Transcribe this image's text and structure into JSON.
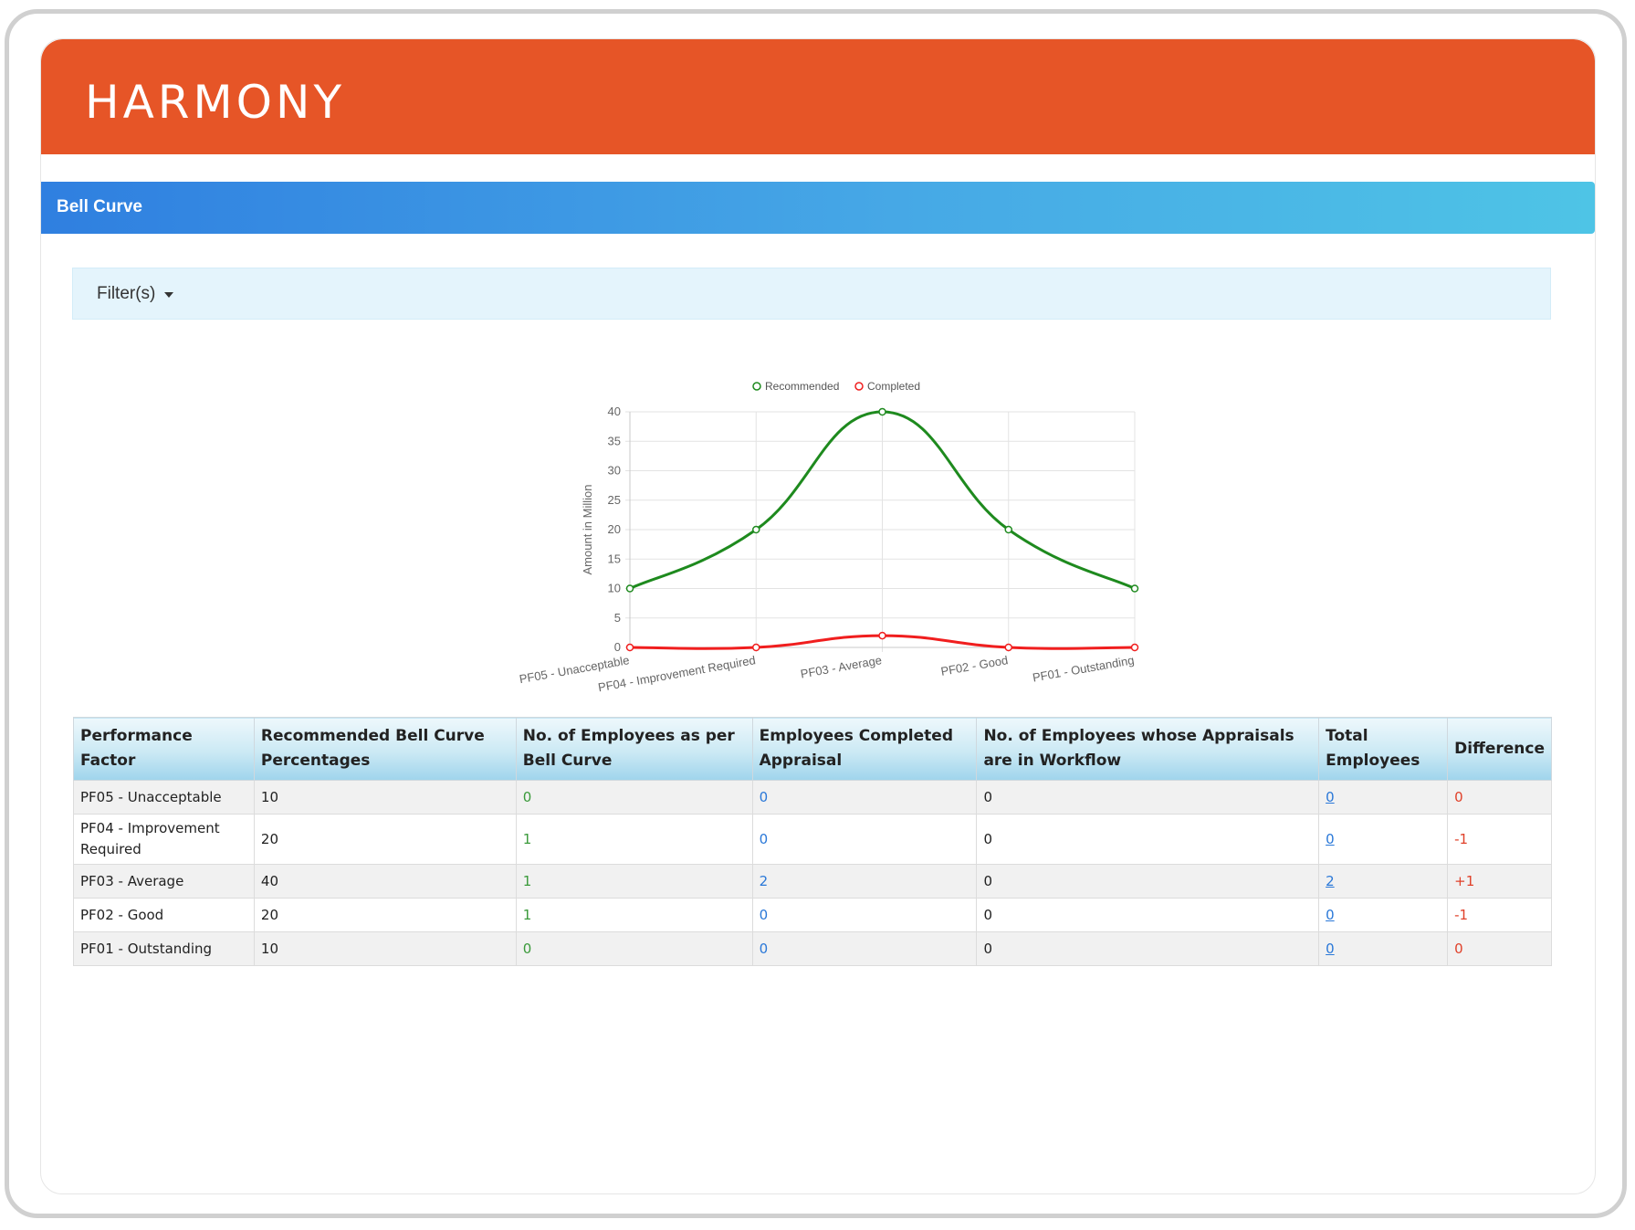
{
  "brand": {
    "logo": "HARMONY",
    "color": "#e65527"
  },
  "section": {
    "title": "Bell Curve"
  },
  "filter": {
    "label": "Filter(s)"
  },
  "chart_data": {
    "type": "line",
    "categories": [
      "PF05 - Unacceptable",
      "PF04 - Improvement Required",
      "PF03 - Average",
      "PF02 - Good",
      "PF01 - Outstanding"
    ],
    "series": [
      {
        "name": "Recommended",
        "values": [
          10,
          20,
          40,
          20,
          10
        ],
        "color": "#1e8a1e"
      },
      {
        "name": "Completed",
        "values": [
          0,
          0,
          2,
          0,
          0
        ],
        "color": "#f01e1e"
      }
    ],
    "ylabel": "Amount in Million",
    "xlabel": "",
    "ylim": [
      0,
      40
    ],
    "yticks": [
      0,
      5,
      10,
      15,
      20,
      25,
      30,
      35,
      40
    ],
    "grid": true,
    "legend": "top",
    "smooth": true
  },
  "table": {
    "headers": [
      "Performance Factor",
      "Recommended Bell Curve Percentages",
      "No. of Employees as per Bell Curve",
      "Employees Completed Appraisal",
      "No. of Employees whose Appraisals are in Workflow",
      "Total Employees",
      "Difference"
    ],
    "rows": [
      {
        "factor": "PF05 - Unacceptable",
        "recommended": "10",
        "per_curve": "0",
        "completed": "0",
        "workflow": "0",
        "total": "0",
        "difference": "0"
      },
      {
        "factor": "PF04 - Improvement Required",
        "recommended": "20",
        "per_curve": "1",
        "completed": "0",
        "workflow": "0",
        "total": "0",
        "difference": "-1"
      },
      {
        "factor": "PF03 - Average",
        "recommended": "40",
        "per_curve": "1",
        "completed": "2",
        "workflow": "0",
        "total": "2",
        "difference": "+1"
      },
      {
        "factor": "PF02 - Good",
        "recommended": "20",
        "per_curve": "1",
        "completed": "0",
        "workflow": "0",
        "total": "0",
        "difference": "-1"
      },
      {
        "factor": "PF01 - Outstanding",
        "recommended": "10",
        "per_curve": "0",
        "completed": "0",
        "workflow": "0",
        "total": "0",
        "difference": "0"
      }
    ]
  }
}
